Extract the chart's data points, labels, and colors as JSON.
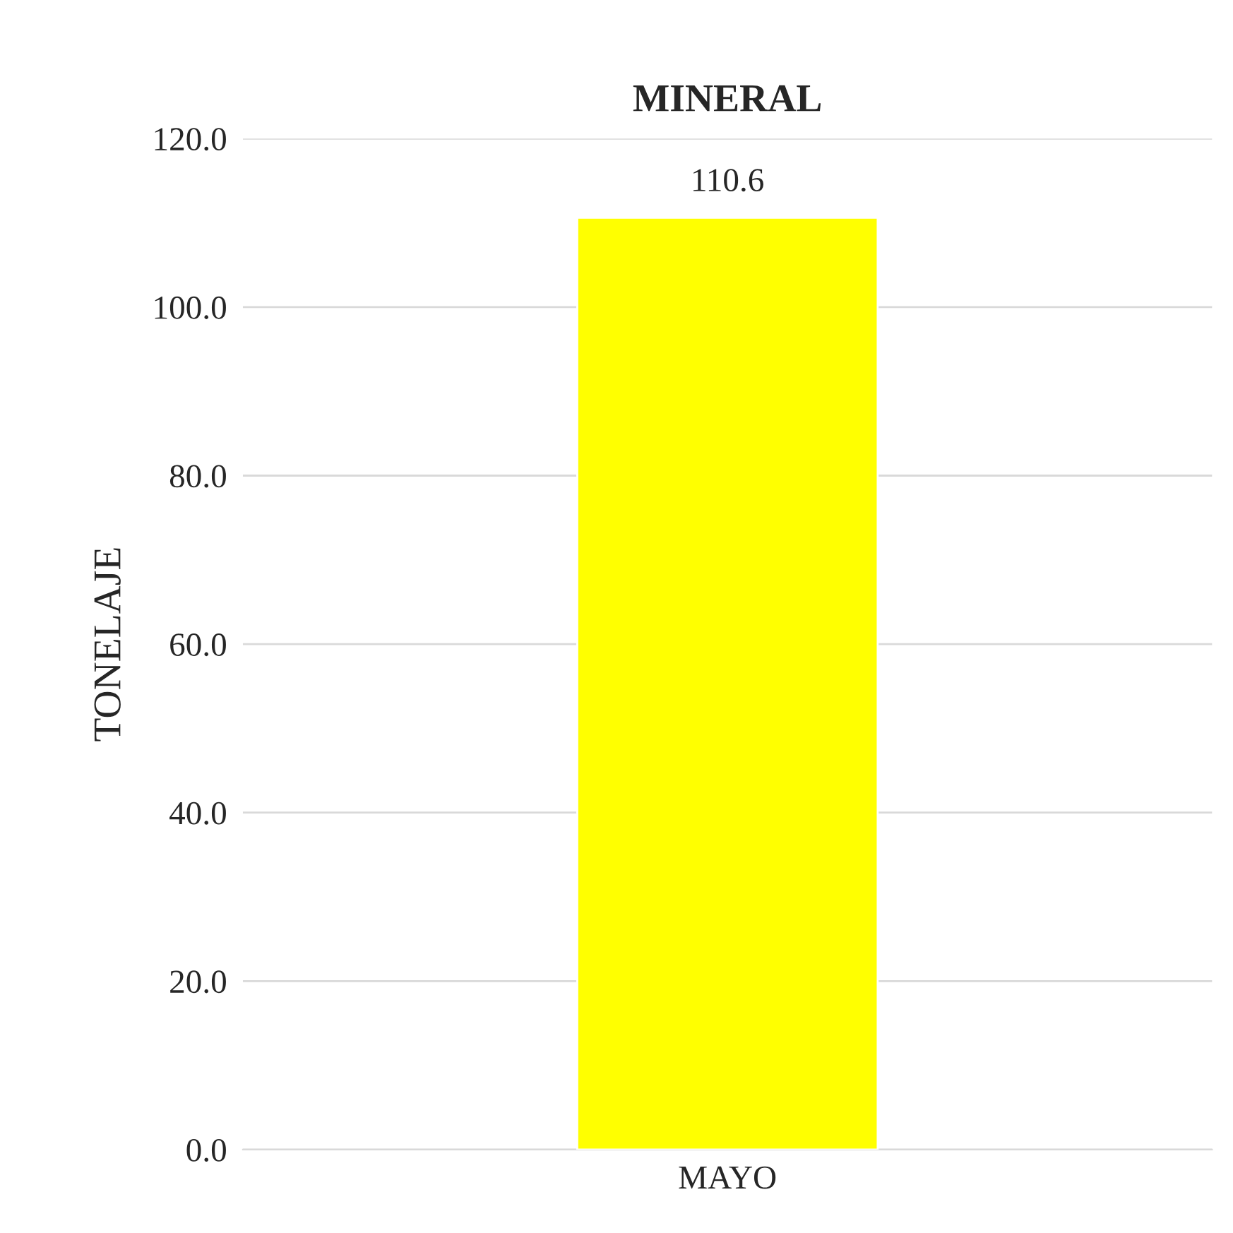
{
  "chart_data": {
    "type": "bar",
    "title": "MINERAL",
    "ylabel": "TONELAJE",
    "categories": [
      "MAYO"
    ],
    "values": [
      110.6
    ],
    "color": "#ffff00",
    "ylim": [
      0,
      120
    ],
    "yticks": [
      {
        "value": 0,
        "label": "0.0"
      },
      {
        "value": 20,
        "label": "20.0"
      },
      {
        "value": 40,
        "label": "40.0"
      },
      {
        "value": 60,
        "label": "60.0"
      },
      {
        "value": 80,
        "label": "80.0"
      },
      {
        "value": 100,
        "label": "100.0"
      },
      {
        "value": 120,
        "label": "120.0"
      }
    ],
    "grid": "y",
    "data_labels": true
  }
}
